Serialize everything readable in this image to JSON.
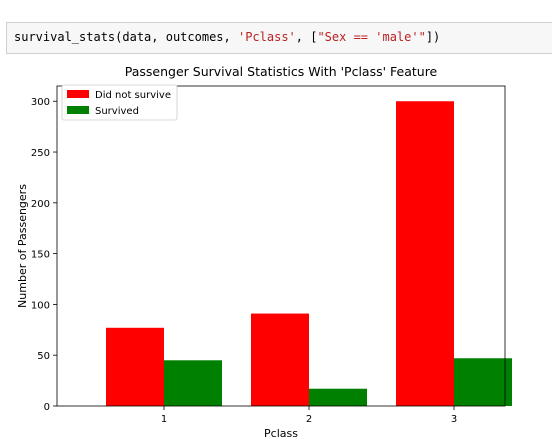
{
  "code": {
    "func": "survival_stats(data, outcomes, ",
    "arg_str": "'Pclass'",
    "sep": ", [",
    "filter_str": "\"Sex == 'male'\"",
    "end": "])"
  },
  "chart_data": {
    "type": "bar",
    "title": "Passenger Survival Statistics With 'Pclass' Feature",
    "xlabel": "Pclass",
    "ylabel": "Number of Passengers",
    "categories": [
      "1",
      "2",
      "3"
    ],
    "series": [
      {
        "name": "Did not survive",
        "color": "#ff0000",
        "values": [
          77,
          91,
          300
        ]
      },
      {
        "name": "Survived",
        "color": "#008000",
        "values": [
          45,
          17,
          47
        ]
      }
    ],
    "ylim": [
      0,
      315
    ],
    "yticks": [
      0,
      50,
      100,
      150,
      200,
      250,
      300
    ],
    "legend": "top-left",
    "grid": false
  }
}
